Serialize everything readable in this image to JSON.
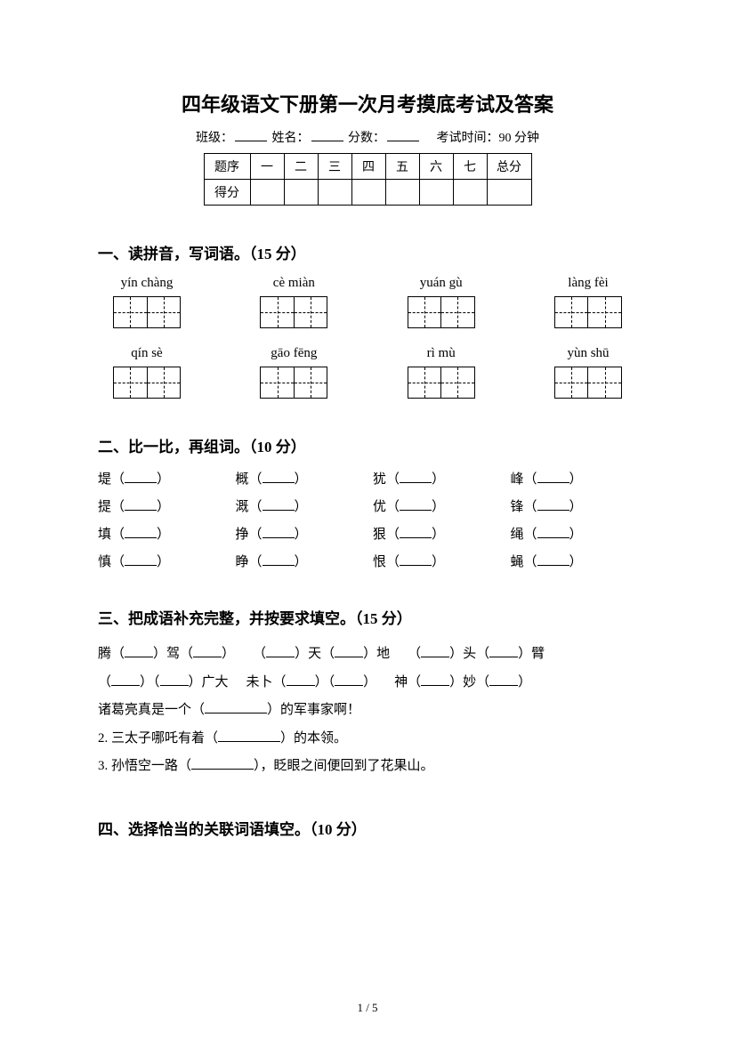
{
  "title": "四年级语文下册第一次月考摸底考试及答案",
  "info": {
    "class_label": "班级：",
    "name_label": "姓名：",
    "score_label": "分数：",
    "time_label": "考试时间：90 分钟"
  },
  "scoreTable": {
    "row1": [
      "题序",
      "一",
      "二",
      "三",
      "四",
      "五",
      "六",
      "七",
      "总分"
    ],
    "row2_label": "得分"
  },
  "section1": {
    "heading": "一、读拼音，写词语。（15 分）",
    "row1": [
      "yín chàng",
      "cè miàn",
      "yuán gù",
      "làng fèi"
    ],
    "row2": [
      "qín sè",
      "gāo fēng",
      "rì mù",
      "yùn shū"
    ]
  },
  "section2": {
    "heading": "二、比一比，再组词。（10 分）",
    "items": [
      [
        "堤",
        "概",
        "犹",
        "峰"
      ],
      [
        "提",
        "溉",
        "优",
        "锋"
      ],
      [
        "填",
        "挣",
        "狠",
        "绳"
      ],
      [
        "慎",
        "睁",
        "恨",
        "蝇"
      ]
    ]
  },
  "section3": {
    "heading": "三、把成语补充完整，并按要求填空。（15 分）",
    "line1_parts": [
      "腾（",
      "）驾（",
      "）",
      "（",
      "）天（",
      "）地",
      "（",
      "）头（",
      "）臂"
    ],
    "line2_parts": [
      "（",
      "）（",
      "）广大",
      "未卜（",
      "）（",
      "）",
      "神（",
      "）妙（",
      "）"
    ],
    "line3_pre": "诸葛亮真是一个（",
    "line3_post": "）的军事家啊！",
    "line4_pre": "2. 三太子哪吒有着（",
    "line4_post": "）的本领。",
    "line5_pre": "3. 孙悟空一路（",
    "line5_post": "），眨眼之间便回到了花果山。"
  },
  "section4": {
    "heading": "四、选择恰当的关联词语填空。（10 分）"
  },
  "pageNum": "1 / 5"
}
